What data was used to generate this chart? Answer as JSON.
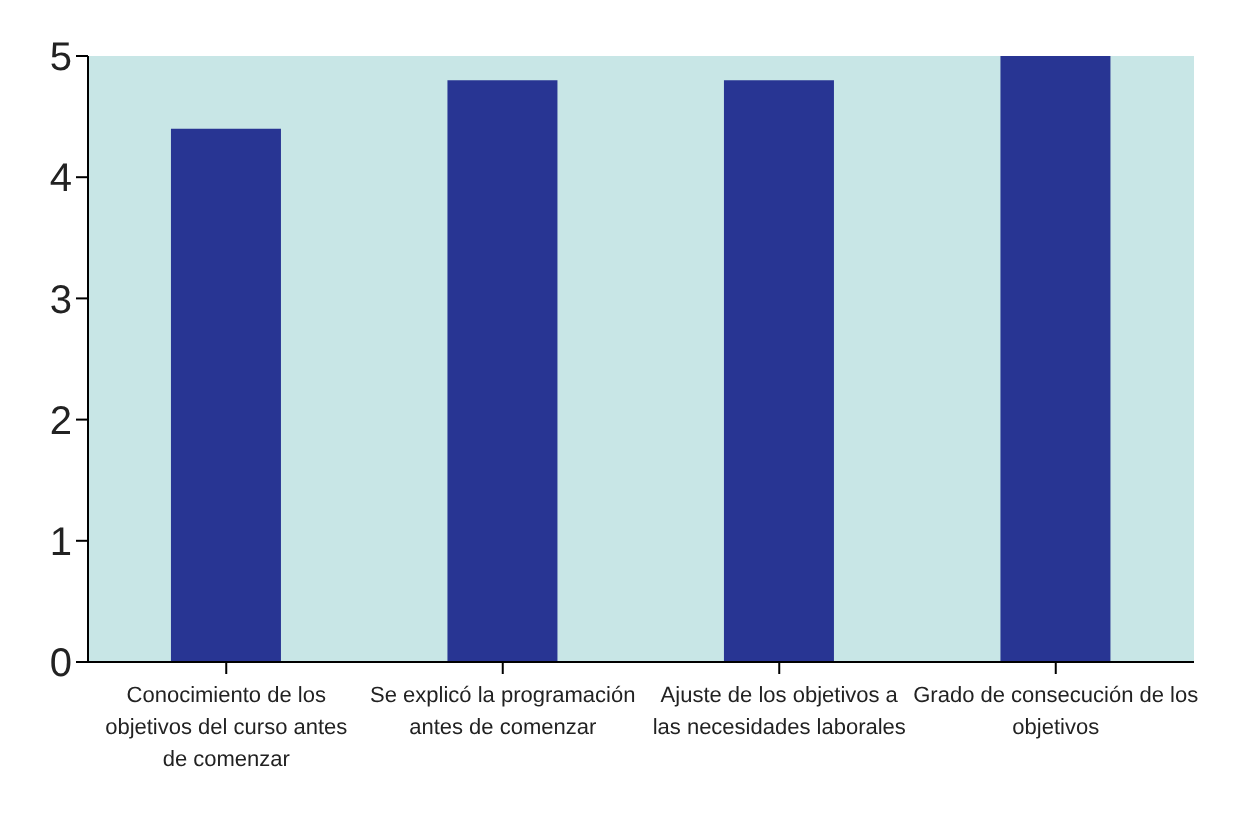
{
  "chart_data": {
    "type": "bar",
    "categories": [
      "Conocimiento de los objetivos del curso antes de comenzar",
      "Se explicó la programación antes de comenzar",
      "Ajuste de los objetivos a las necesidades laborales",
      "Grado de consecución de los objetivos"
    ],
    "values": [
      4.4,
      4.8,
      4.8,
      5
    ],
    "color": "#283593",
    "ylim": [
      0,
      5
    ],
    "yticks": [
      0,
      1,
      2,
      3,
      4,
      5
    ]
  }
}
